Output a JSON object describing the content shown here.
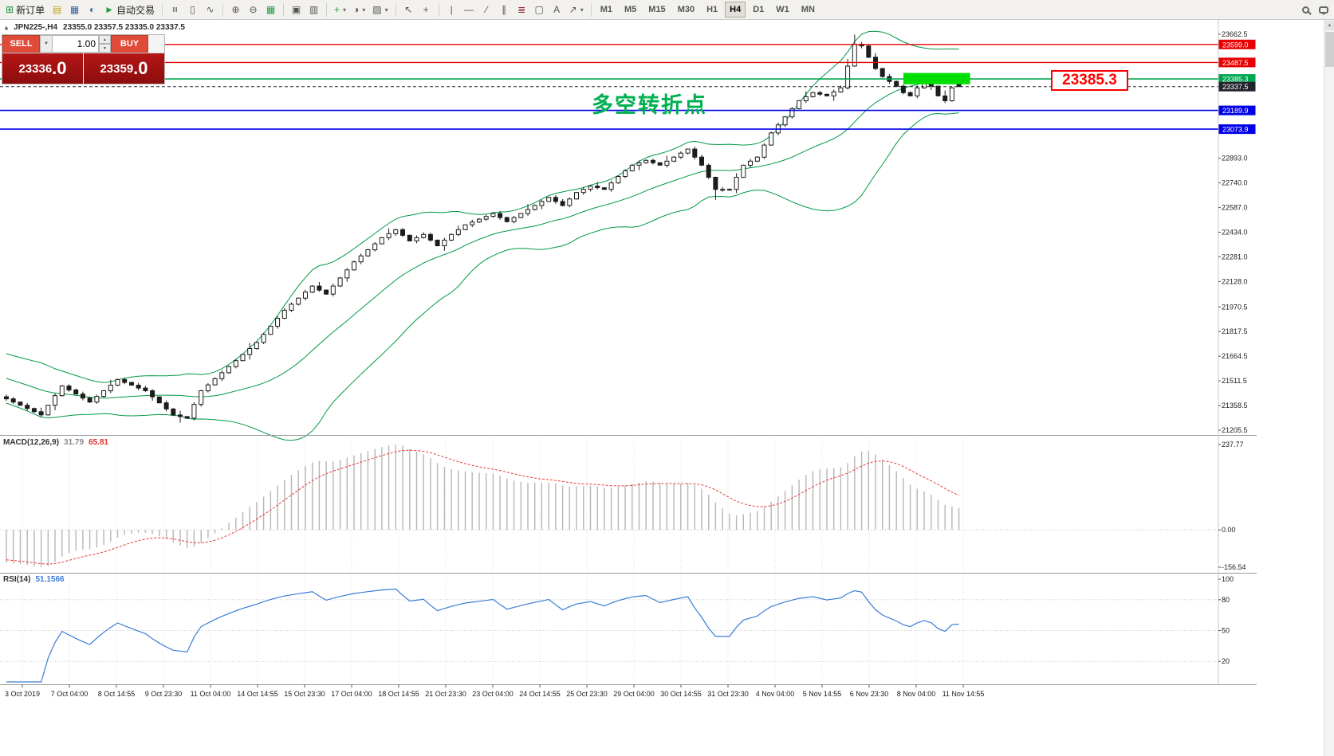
{
  "icons": {
    "caret_down": "▾",
    "chevron_down": "▼",
    "spinner_up": "▲",
    "spinner_down": "▼",
    "chart_marker": "▴",
    "scroll_up": "▲"
  },
  "toolbar": {
    "buttons": [
      {
        "name": "new-order-button",
        "glyph": "⊞",
        "glyph_color": "#1d8a3a",
        "label": "新订单"
      },
      {
        "name": "chart-window-button",
        "glyph": "▤",
        "glyph_color": "#c49a1a"
      },
      {
        "name": "profiles-button",
        "glyph": "▦",
        "glyph_color": "#35639f"
      },
      {
        "name": "market-watch-button",
        "glyph": "◐",
        "glyph_color": "#35639f"
      },
      {
        "name": "autotrading-button",
        "glyph": "►",
        "glyph_color": "#1e9e40",
        "label": "自动交易"
      },
      {
        "sep": true
      },
      {
        "name": "bar-chart-button",
        "glyph": "≡",
        "rot": true
      },
      {
        "name": "candlestick-chart-button",
        "glyph": "▯"
      },
      {
        "name": "line-chart-button",
        "glyph": "∿"
      },
      {
        "sep": true
      },
      {
        "name": "zoom-in-button",
        "glyph": "⊕"
      },
      {
        "name": "zoom-out-button",
        "glyph": "⊖"
      },
      {
        "name": "auto-arrange-button",
        "glyph": "▦",
        "glyph_color": "#1e9e40"
      },
      {
        "sep": true
      },
      {
        "name": "tile-windows-button",
        "glyph": "▣"
      },
      {
        "name": "cascade-windows-button",
        "glyph": "▥"
      },
      {
        "sep": true
      },
      {
        "name": "indicators-button",
        "glyph": "+",
        "glyph_color": "#1e9e40",
        "caret": true
      },
      {
        "name": "periods-button",
        "glyph": "◑",
        "caret": true
      },
      {
        "name": "templates-button",
        "glyph": "▨",
        "caret": true
      },
      {
        "sep": true
      },
      {
        "name": "cursor-button",
        "glyph": "↖"
      },
      {
        "name": "crosshair-button",
        "glyph": "+"
      },
      {
        "sep": true
      },
      {
        "name": "vertical-line-button",
        "glyph": "|"
      },
      {
        "name": "horizontal-line-button",
        "glyph": "—"
      },
      {
        "name": "trendline-button",
        "glyph": "∕"
      },
      {
        "name": "equidistant-channel-button",
        "glyph": "∥"
      },
      {
        "name": "fibonacci-button",
        "glyph": "≣",
        "glyph_color": "#8a2a2a"
      },
      {
        "name": "shapes-button",
        "glyph": "▢"
      },
      {
        "name": "text-button",
        "glyph": "A"
      },
      {
        "name": "arrow-tools-button",
        "glyph": "↗",
        "caret": true
      },
      {
        "sep": true
      }
    ],
    "timeframes": [
      "M1",
      "M5",
      "M15",
      "M30",
      "H1",
      "H4",
      "D1",
      "W1",
      "MN"
    ],
    "active_timeframe": "H4"
  },
  "trade_panel": {
    "sell_label": "SELL",
    "buy_label": "BUY",
    "lot_size": "1.00",
    "sell_price_main": "23336",
    "sell_price_frac": ".0",
    "buy_price_main": "23359",
    "buy_price_frac": ".0"
  },
  "chart": {
    "title_symbol": "JPN225-,H4",
    "title_ohlc": "23355.0 23357.5 23335.0 23337.5",
    "annotation_text": "多空转折点",
    "price_tag": "23385.3"
  },
  "indicators": {
    "macd": {
      "name": "MACD(12,26,9)",
      "value_main": "31.79",
      "value_signal": "65.81",
      "axis_labels": [
        "237.77",
        "0.00",
        "-156.54"
      ]
    },
    "rsi": {
      "name": "RSI(14)",
      "value": "51.1566",
      "axis_labels": [
        "100",
        "80",
        "50",
        "20"
      ],
      "axis_values": [
        100,
        80,
        50,
        20
      ],
      "levels": [
        80,
        50,
        20
      ]
    }
  },
  "chart_data": {
    "type": "candlestick",
    "symbol": "JPN225-",
    "period": "H4",
    "last_bar": {
      "open": 23355.0,
      "high": 23357.5,
      "low": 23335.0,
      "close": 23337.5
    },
    "closes": [
      21400,
      21380,
      21360,
      21340,
      21320,
      21300,
      21360,
      21420,
      21480,
      21455,
      21430,
      21405,
      21380,
      21415,
      21450,
      21485,
      21520,
      21502,
      21485,
      21467,
      21450,
      21412,
      21375,
      21337,
      21300,
      21290,
      21280,
      21365,
      21450,
      21487,
      21525,
      21562,
      21600,
      21637,
      21675,
      21712,
      21750,
      21800,
      21850,
      21900,
      21950,
      21987,
      22025,
      22062,
      22100,
      22075,
      22050,
      22100,
      22150,
      22200,
      22250,
      22287,
      22325,
      22362,
      22400,
      22425,
      22450,
      22415,
      22380,
      22400,
      22420,
      22385,
      22350,
      22385,
      22420,
      22450,
      22480,
      22497,
      22515,
      22532,
      22550,
      22525,
      22500,
      22525,
      22550,
      22575,
      22600,
      22625,
      22650,
      22625,
      22600,
      22640,
      22680,
      22700,
      22720,
      22710,
      22700,
      22740,
      22780,
      22815,
      22850,
      22865,
      22880,
      22865,
      22850,
      22875,
      22900,
      22925,
      22950,
      22900,
      22850,
      22775,
      22700,
      22700,
      22700,
      22775,
      22850,
      22875,
      22900,
      22975,
      23050,
      23100,
      23150,
      23200,
      23250,
      23275,
      23300,
      23290,
      23280,
      23305,
      23330,
      23465,
      23600,
      23590,
      23520,
      23450,
      23400,
      23370,
      23340,
      23300,
      23280,
      23330,
      23360,
      23340,
      23280,
      23250,
      23330,
      23337.5
    ],
    "warmup": {
      "bars": 30,
      "start": 21800
    },
    "specials": {
      "spike_bar": 122,
      "spike_high": 23660,
      "spike_prev_high": 23510,
      "dip_bar": 102,
      "dip_low": 22635,
      "early_dip_bar": 25,
      "early_dip_low": 21252
    },
    "bollinger": {
      "period": 20,
      "deviation": 2,
      "color": "#009944"
    },
    "price_axis": {
      "max": 23662.5,
      "min": 21205.5,
      "labels": [
        "23662.5",
        "22893.0",
        "22740.0",
        "22587.0",
        "22434.0",
        "22281.0",
        "22128.0",
        "21970.5",
        "21817.5",
        "21664.5",
        "21511.5",
        "21358.5",
        "21205.5"
      ]
    },
    "hlines": [
      {
        "name": "resistance-line-1",
        "price": 23599.0,
        "color": "#e60000",
        "label": "23599.0",
        "width": 1.4
      },
      {
        "name": "resistance-line-2",
        "price": 23487.5,
        "color": "#e60000",
        "label": "23487.5",
        "width": 1.4
      },
      {
        "name": "pivot-line",
        "price": 23385.3,
        "color": "#00a651",
        "label": "23385.3",
        "width": 1.6
      },
      {
        "name": "current-price-line",
        "price": 23337.5,
        "color": "#23232e",
        "label": "23337.5",
        "width": 1,
        "dash": true
      },
      {
        "name": "support-line-1",
        "price": 23189.9,
        "color": "#0000e6",
        "label": "23189.9",
        "width": 1.6
      },
      {
        "name": "support-line-2",
        "price": 23073.9,
        "color": "#0000e6",
        "label": "23073.9",
        "width": 1.6
      }
    ],
    "highlight_rect": {
      "bar_start": 129,
      "bar_end": 138.6,
      "price_top": 23422,
      "price_bottom": 23352,
      "color": "#00dd00"
    },
    "time_labels": [
      "3 Oct 2019",
      "7 Oct 04:00",
      "8 Oct 14:55",
      "9 Oct 23:30",
      "11 Oct 04:00",
      "14 Oct 14:55",
      "15 Oct 23:30",
      "17 Oct 04:00",
      "18 Oct 14:55",
      "21 Oct 23:30",
      "23 Oct 04:00",
      "24 Oct 14:55",
      "25 Oct 23:30",
      "29 Oct 04:00",
      "30 Oct 14:55",
      "31 Oct 23:30",
      "4 Nov 04:00",
      "5 Nov 14:55",
      "6 Nov 23:30",
      "8 Nov 04:00",
      "11 Nov 14:55"
    ],
    "colors": {
      "candle_up_fill": "#ffffff",
      "candle_down_fill": "#1c1c1c",
      "candle_stroke": "#1c1c1c",
      "macd_histogram": "#b6b6b6",
      "macd_signal": "#e53935",
      "rsi_line": "#3b7dd8",
      "grid": "#e0e0e0",
      "axis_text": "#1c1c1c"
    }
  }
}
